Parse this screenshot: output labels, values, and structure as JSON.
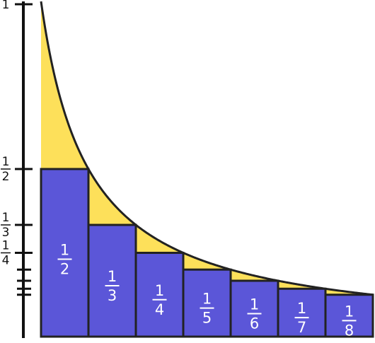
{
  "colors": {
    "rect_fill": "#5b56d8",
    "area_fill": "#fde05a",
    "stroke": "#222222",
    "label_text": "#ffffff",
    "axis_text": "#111111",
    "background": "#ffffff"
  },
  "diagram": {
    "curve_function": "1/x",
    "x_start": 1,
    "x_end": 8,
    "y_axis": {
      "ymax": 1,
      "labels": [
        {
          "numerator": "1",
          "denominator": "",
          "value": 1
        },
        {
          "numerator": "1",
          "denominator": "2",
          "value": 0.5
        },
        {
          "numerator": "1",
          "denominator": "3",
          "value": 0.3333
        },
        {
          "numerator": "1",
          "denominator": "4",
          "value": 0.25
        }
      ],
      "extra_ticks": [
        0.2,
        0.1667,
        0.1429,
        0.125
      ]
    },
    "rectangles": [
      {
        "numerator": "1",
        "denominator": "2",
        "height": 0.5
      },
      {
        "numerator": "1",
        "denominator": "3",
        "height": 0.3333
      },
      {
        "numerator": "1",
        "denominator": "4",
        "height": 0.25
      },
      {
        "numerator": "1",
        "denominator": "5",
        "height": 0.2
      },
      {
        "numerator": "1",
        "denominator": "6",
        "height": 0.1667
      },
      {
        "numerator": "1",
        "denominator": "7",
        "height": 0.1429
      },
      {
        "numerator": "1",
        "denominator": "8",
        "height": 0.125
      }
    ]
  }
}
